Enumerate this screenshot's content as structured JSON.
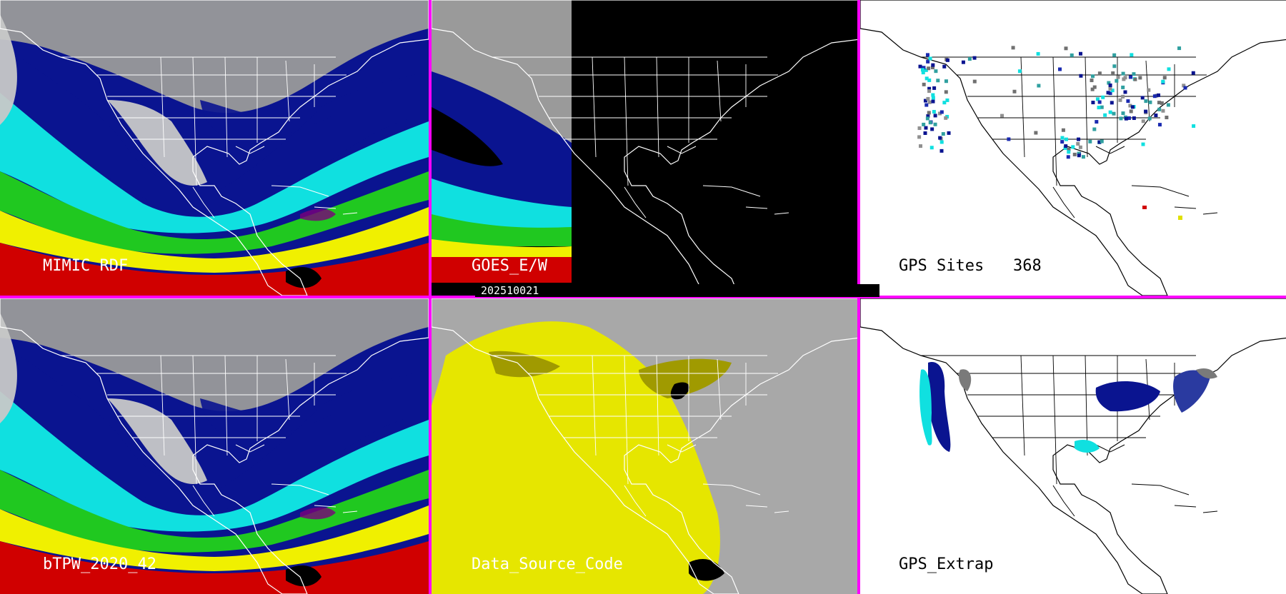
{
  "panels": [
    {
      "label": "MIMIC RDF",
      "style": "tpw"
    },
    {
      "label": "GOES_E/W",
      "style": "goes"
    },
    {
      "label": "GPS Sites",
      "count": "368",
      "style": "gps"
    },
    {
      "label": "bTPW_2020_42",
      "style": "tpw"
    },
    {
      "label": "Data_Source_Code",
      "style": "dsc"
    },
    {
      "label": "GPS_Extrap",
      "style": "extrap"
    }
  ],
  "timestamp": "202510021",
  "colors": {
    "divider": "#ff00ff",
    "gray": "#a8a8a8",
    "navy": "#0a1490",
    "cyan": "#10e0e0",
    "green": "#20c820",
    "yellow": "#f0f000",
    "red": "#d00000",
    "olive": "#a09a00",
    "dsc_yellow": "#e6e600"
  }
}
